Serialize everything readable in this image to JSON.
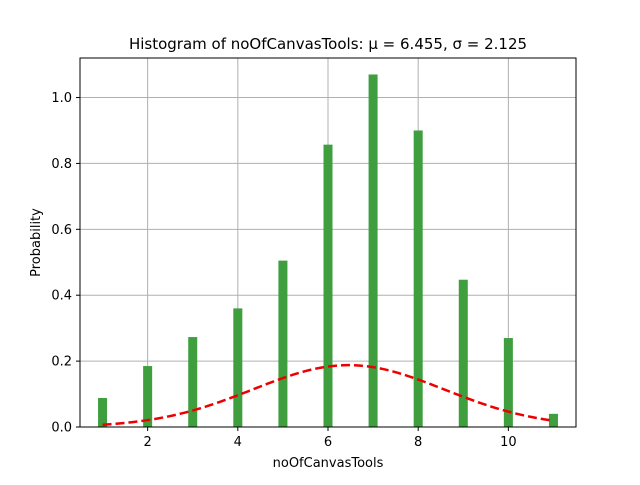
{
  "chart_data": {
    "type": "bar",
    "title": "Histogram of noOfCanvasTools",
    "title_math": ": μ = 6.455,  σ = 2.125",
    "xlabel": "noOfCanvasTools",
    "ylabel": "Probability",
    "xlim": [
      0.5,
      11.5
    ],
    "ylim": [
      0,
      1.12
    ],
    "xticks": [
      2,
      4,
      6,
      8,
      10
    ],
    "xtick_labels": [
      "2",
      "4",
      "6",
      "8",
      "10"
    ],
    "yticks": [
      0.0,
      0.2,
      0.4,
      0.6,
      0.8,
      1.0
    ],
    "ytick_labels": [
      "0.0",
      "0.2",
      "0.4",
      "0.6",
      "0.8",
      "1.0"
    ],
    "grid": true,
    "bar_color": "#3f9f3f",
    "bars": {
      "x": [
        1,
        2,
        3,
        4,
        5,
        6,
        7,
        8,
        9,
        10,
        11
      ],
      "values": [
        0.088,
        0.185,
        0.273,
        0.36,
        0.505,
        0.857,
        1.07,
        0.9,
        0.447,
        0.27,
        0.04
      ],
      "bin_width": 0.2
    },
    "series": [
      {
        "type": "line",
        "style": "dashed",
        "color": "#ee0000",
        "distribution": "normal",
        "mu": 6.455,
        "sigma": 2.125,
        "x_range": [
          1,
          11
        ]
      }
    ]
  }
}
